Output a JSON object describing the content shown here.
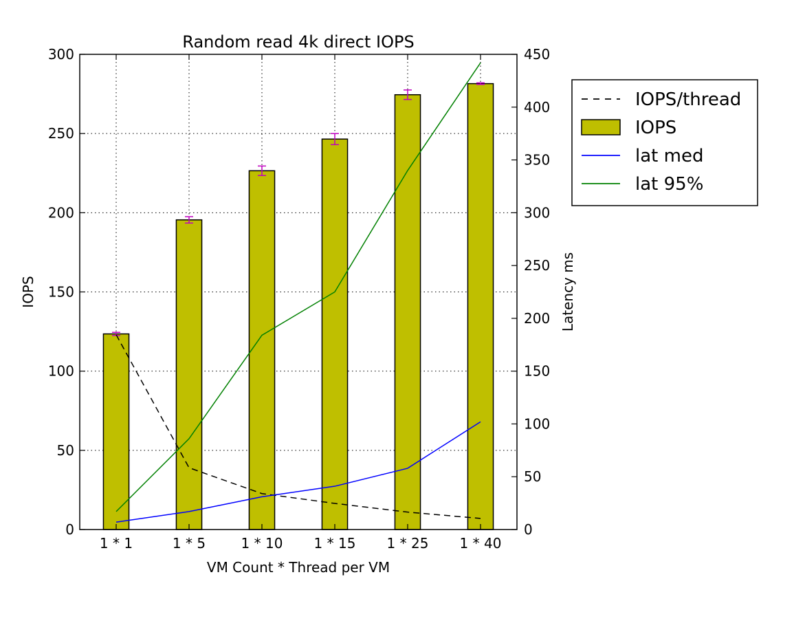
{
  "chart_data": {
    "type": "bar",
    "title": "Random read 4k direct IOPS",
    "xlabel": "VM Count * Thread per VM",
    "ylabel": "IOPS",
    "y2label": "Latency ms",
    "categories": [
      "1 * 1",
      "1 * 5",
      "1 * 10",
      "1 * 15",
      "1 * 25",
      "1 * 40"
    ],
    "ylim": [
      0,
      300
    ],
    "y2lim": [
      0,
      450
    ],
    "yticks": [
      0,
      50,
      100,
      150,
      200,
      250,
      300
    ],
    "y2ticks": [
      0,
      50,
      100,
      150,
      200,
      250,
      300,
      350,
      400,
      450
    ],
    "grid": true,
    "legend_position": "outside-right-top",
    "series": [
      {
        "name": "IOPS/thread",
        "kind": "line",
        "axis": "left",
        "style": "dashed",
        "color": "#000000",
        "values": [
          123,
          39,
          22.7,
          16.5,
          11,
          7
        ]
      },
      {
        "name": "IOPS",
        "kind": "bar",
        "axis": "left",
        "color": "#bfbf00",
        "values": [
          123.5,
          195.5,
          226.5,
          246.5,
          274.5,
          281.5
        ],
        "errors": [
          1,
          2,
          3,
          3.5,
          3,
          0.5
        ],
        "error_color": "#bf00bf"
      },
      {
        "name": "lat med",
        "kind": "line",
        "axis": "right",
        "color": "#0000ff",
        "values": [
          7,
          17,
          31,
          41,
          58,
          102
        ]
      },
      {
        "name": "lat 95%",
        "kind": "line",
        "axis": "right",
        "color": "#008000",
        "values": [
          17,
          86,
          184,
          225,
          340,
          442
        ]
      }
    ]
  }
}
